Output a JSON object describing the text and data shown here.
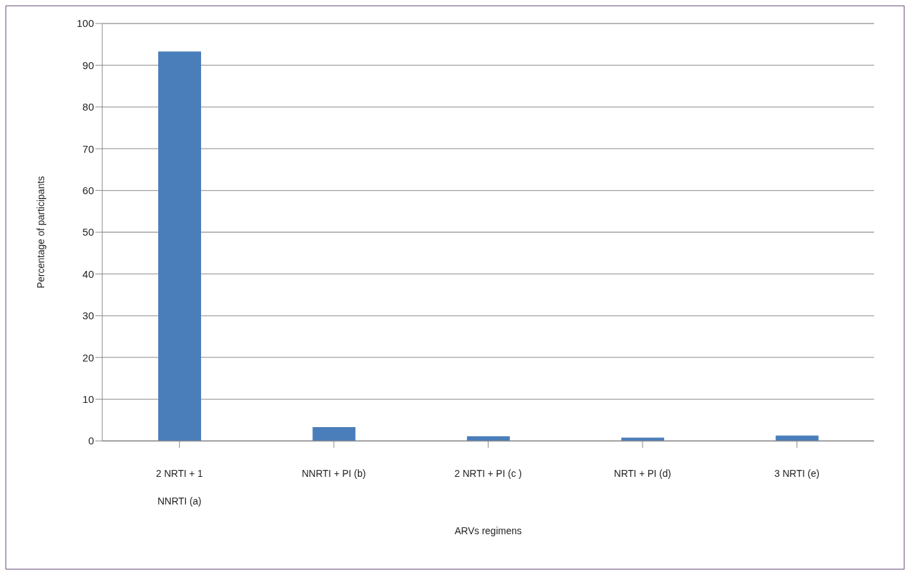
{
  "chart_data": {
    "type": "bar",
    "xlabel": "ARVs regimens",
    "ylabel": "Percentage of participants",
    "categories": [
      "2 NRTI + 1 NNRTI (a)",
      "NNRTI + PI (b)",
      "2 NRTI + PI (c )",
      "NRTI + PI (d)",
      "3 NRTI (e)"
    ],
    "values": [
      93.3,
      3.3,
      1.1,
      0.8,
      1.3
    ],
    "color": "#4a7ebb",
    "ylim": [
      0,
      100
    ],
    "yticks": [
      0,
      10,
      20,
      30,
      40,
      50,
      60,
      70,
      80,
      90,
      100
    ],
    "grid": "y",
    "legend": false
  }
}
